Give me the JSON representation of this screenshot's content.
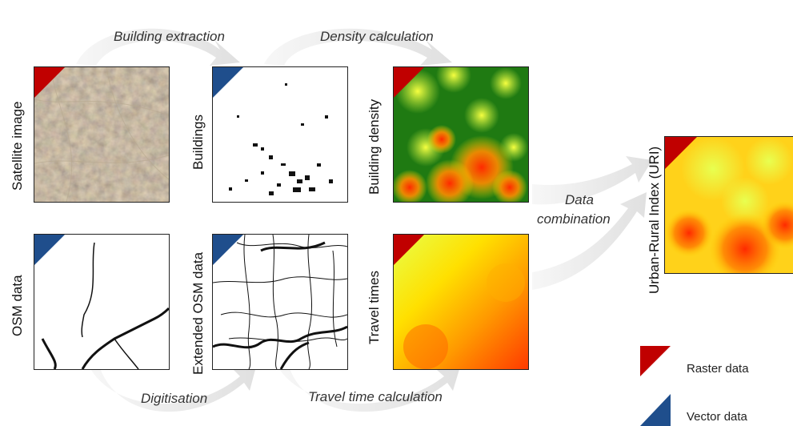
{
  "steps": {
    "building_extraction": "Building extraction",
    "density_calculation": "Density calculation",
    "digitisation": "Digitisation",
    "travel_time_calculation": "Travel time calculation",
    "data_combination_line1": "Data",
    "data_combination_line2": "combination"
  },
  "panels": {
    "satellite_image": "Satellite image",
    "buildings": "Buildings",
    "building_density": "Building density",
    "osm_data": "OSM data",
    "extended_osm_data": "Extended OSM data",
    "travel_times": "Travel times",
    "uri": "Urban-Rural Index (URI)"
  },
  "legend": {
    "raster": "Raster data",
    "vector": "Vector data"
  },
  "colors": {
    "raster_marker": "#c00000",
    "vector_marker": "#1f4e8c",
    "arrow": "#ececec"
  }
}
